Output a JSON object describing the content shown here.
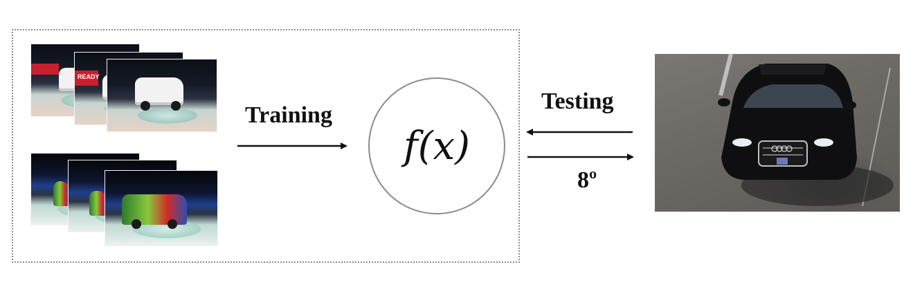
{
  "diagram": {
    "training_label": "Training",
    "testing_label": "Testing",
    "angle_label": "8º",
    "function_label": "f(x)"
  },
  "training_set": {
    "groups": [
      {
        "name": "white-suv-views",
        "view_count": 3
      },
      {
        "name": "rally-car-views",
        "view_count": 3
      }
    ],
    "banner_text": "READY"
  },
  "colors": {
    "frame_border": "#8a8a8a",
    "circle_border": "#8a8a8a",
    "arrow": "#111111",
    "label": "#111111"
  },
  "icons": {
    "training_arrow": "arrow-right-icon",
    "testing_arrow": "arrow-left-icon",
    "output_arrow": "arrow-right-icon"
  }
}
